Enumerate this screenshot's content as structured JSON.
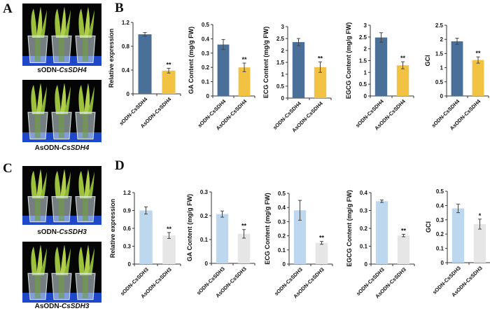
{
  "panels": {
    "a": "A",
    "b": "B",
    "c": "C",
    "d": "D"
  },
  "photos": [
    {
      "prefix": "sODN-",
      "gene": "CsSDH4"
    },
    {
      "prefix": "AsODN-",
      "gene": "CsSDH4"
    },
    {
      "prefix": "sODN-",
      "gene": "CsSDH3"
    },
    {
      "prefix": "AsODN-",
      "gene": "CsSDH3"
    }
  ],
  "colors": {
    "sdh4_control": "#4a6f99",
    "sdh4_treated": "#f2c343",
    "sdh3_control": "#bcd7ee",
    "sdh3_treated": "#e6e6e6"
  },
  "chart_data": [
    {
      "panel": "B",
      "type": "bar",
      "ylabel": "Relative expression",
      "categories": [
        "sODN-CsSDH4",
        "AsODN-CsSDH4"
      ],
      "values": [
        1.0,
        0.39
      ],
      "errors": [
        0.03,
        0.04
      ],
      "significance": [
        "",
        "**"
      ],
      "ylim": [
        0,
        1.2
      ],
      "yticks": [
        "0",
        "0.4",
        "0.8",
        "1.2"
      ]
    },
    {
      "panel": "B",
      "type": "bar",
      "ylabel": "GA Content (mg/g FW)",
      "categories": [
        "sODN-CsSDH4",
        "AsODN-CsSDH4"
      ],
      "values": [
        0.36,
        0.2
      ],
      "errors": [
        0.035,
        0.03
      ],
      "significance": [
        "",
        "**"
      ],
      "ylim": [
        0,
        0.5
      ],
      "yticks": [
        "0",
        "0.1",
        "0.2",
        "0.3",
        "0.4",
        "0.5"
      ]
    },
    {
      "panel": "B",
      "type": "bar",
      "ylabel": "ECG Content (mg/g FW)",
      "categories": [
        "sODN-CsSDH4",
        "AsODN-CsSDH4"
      ],
      "values": [
        2.35,
        1.3
      ],
      "errors": [
        0.15,
        0.22
      ],
      "significance": [
        "",
        "**"
      ],
      "ylim": [
        0,
        3
      ],
      "yticks": [
        "0",
        "0.5",
        "1",
        "1.5",
        "2",
        "2.5",
        "3"
      ]
    },
    {
      "panel": "B",
      "type": "bar",
      "ylabel": "EGCG Content (mg/g FW)",
      "categories": [
        "sODN-CsSDH4",
        "AsODN-CsSDH4"
      ],
      "values": [
        2.48,
        1.3
      ],
      "errors": [
        0.2,
        0.15
      ],
      "significance": [
        "",
        "**"
      ],
      "ylim": [
        0,
        3
      ],
      "yticks": [
        "0",
        "0.5",
        "1",
        "1.5",
        "2",
        "2.5",
        "3"
      ]
    },
    {
      "panel": "B",
      "type": "bar",
      "ylabel": "GCI",
      "categories": [
        "sODN-CsSDH4",
        "AsODN-CsSDH4"
      ],
      "values": [
        1.93,
        1.27
      ],
      "errors": [
        0.11,
        0.11
      ],
      "significance": [
        "",
        "**"
      ],
      "ylim": [
        0,
        2.5
      ],
      "yticks": [
        "0",
        "0.5",
        "1",
        "1.5",
        "2",
        "2.5"
      ]
    },
    {
      "panel": "D",
      "type": "bar",
      "ylabel": "Relative expression",
      "categories": [
        "sODN-CsSDH3",
        "AsODN-CsSDH3"
      ],
      "values": [
        0.9,
        0.48
      ],
      "errors": [
        0.06,
        0.05
      ],
      "significance": [
        "",
        "**"
      ],
      "ylim": [
        0,
        1.2
      ],
      "yticks": [
        "0",
        "0.3",
        "0.6",
        "0.9",
        "1.2"
      ]
    },
    {
      "panel": "D",
      "type": "bar",
      "ylabel": "GA Content (mg/g FW)",
      "categories": [
        "sODN-CsSDH3",
        "AsODN-CsSDH3"
      ],
      "values": [
        0.207,
        0.124
      ],
      "errors": [
        0.013,
        0.018
      ],
      "significance": [
        "",
        "**"
      ],
      "ylim": [
        0,
        0.3
      ],
      "yticks": [
        "0",
        "0.1",
        "0.2",
        "0.3"
      ]
    },
    {
      "panel": "D",
      "type": "bar",
      "ylabel": "ECG Content (mg/g FW)",
      "categories": [
        "sODN-CsSDH3",
        "AsODN-CsSDH3"
      ],
      "values": [
        0.38,
        0.15
      ],
      "errors": [
        0.07,
        0.01
      ],
      "significance": [
        "",
        "**"
      ],
      "ylim": [
        0,
        0.5
      ],
      "yticks": [
        "0",
        "0.1",
        "0.2",
        "0.3",
        "0.4",
        "0.5"
      ]
    },
    {
      "panel": "D",
      "type": "bar",
      "ylabel": "EGCG Content (mg/g FW)",
      "categories": [
        "sODN-CsSDH3",
        "AsODN-CsSDH3"
      ],
      "values": [
        0.352,
        0.16
      ],
      "errors": [
        0.007,
        0.007
      ],
      "significance": [
        "",
        "**"
      ],
      "ylim": [
        0,
        0.4
      ],
      "yticks": [
        "0",
        "0.1",
        "0.2",
        "0.3",
        "0.4"
      ]
    },
    {
      "panel": "D",
      "type": "bar",
      "ylabel": "GCI",
      "categories": [
        "sODN-CsSDH3",
        "AsODN-CsSDH3"
      ],
      "values": [
        0.38,
        0.27
      ],
      "errors": [
        0.03,
        0.035
      ],
      "significance": [
        "",
        "*"
      ],
      "ylim": [
        0,
        0.5
      ],
      "yticks": [
        "0",
        "0.1",
        "0.2",
        "0.3",
        "0.4",
        "0.5"
      ]
    }
  ]
}
